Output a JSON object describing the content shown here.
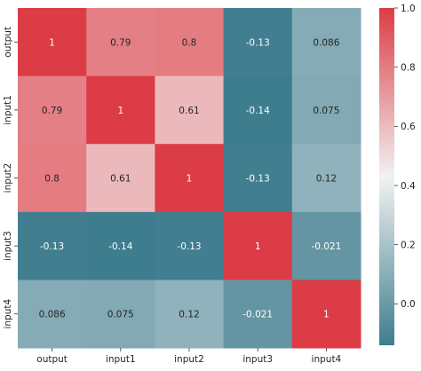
{
  "chart_data": {
    "type": "heatmap",
    "title": "",
    "xlabel": "",
    "ylabel": "",
    "x_labels": [
      "output",
      "input1",
      "input2",
      "input3",
      "input4"
    ],
    "y_labels": [
      "output",
      "input1",
      "input2",
      "input3",
      "input4"
    ],
    "cell_labels": [
      [
        "1",
        "0.79",
        "0.8",
        "-0.13",
        "0.086"
      ],
      [
        "0.79",
        "1",
        "0.61",
        "-0.14",
        "0.075"
      ],
      [
        "0.8",
        "0.61",
        "1",
        "-0.13",
        "0.12"
      ],
      [
        "-0.13",
        "-0.14",
        "-0.13",
        "1",
        "-0.021"
      ],
      [
        "0.086",
        "0.075",
        "0.12",
        "-0.021",
        "1"
      ]
    ],
    "values": [
      [
        1.0,
        0.79,
        0.8,
        -0.13,
        0.086
      ],
      [
        0.79,
        1.0,
        0.61,
        -0.14,
        0.075
      ],
      [
        0.8,
        0.61,
        1.0,
        -0.13,
        0.12
      ],
      [
        -0.13,
        -0.14,
        -0.13,
        1.0,
        -0.021
      ],
      [
        0.086,
        0.075,
        0.12,
        -0.021,
        1.0
      ]
    ],
    "colorbar": {
      "vmin": -0.14,
      "vmax": 1.0,
      "ticks": [
        "1.0",
        "0.8",
        "0.6",
        "0.4",
        "0.2",
        "0.0"
      ],
      "tick_values": [
        1.0,
        0.8,
        0.6,
        0.4,
        0.2,
        0.0
      ],
      "color_low": "#3e7d8e",
      "color_mid": "#f2f2f2",
      "color_high": "#dc3c46"
    },
    "grid": false,
    "legend": "colorbar-right"
  }
}
